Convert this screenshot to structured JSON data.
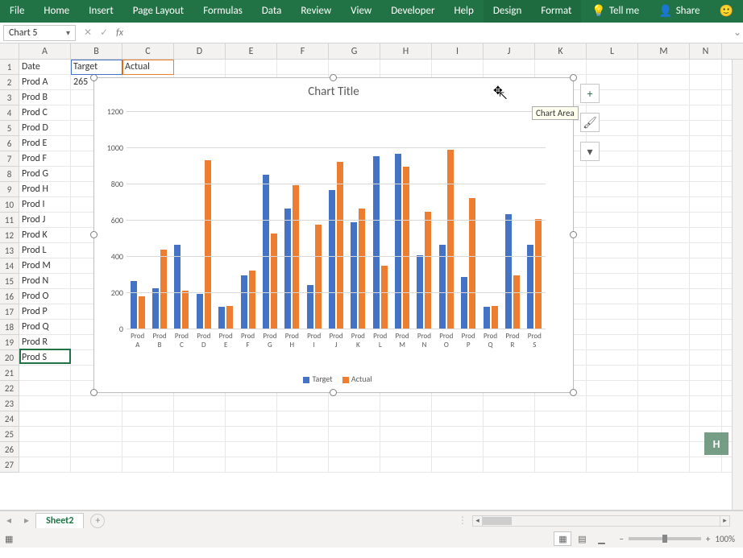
{
  "ribbon": {
    "tabs": [
      "File",
      "Home",
      "Insert",
      "Page Layout",
      "Formulas",
      "Data",
      "Review",
      "View",
      "Developer",
      "Help",
      "Design",
      "Format"
    ],
    "active_tabs": [
      "Design",
      "Format"
    ],
    "tell_me": "Tell me",
    "share": "Share"
  },
  "name_box": "Chart 5",
  "columns": [
    "A",
    "B",
    "C",
    "D",
    "E",
    "F",
    "G",
    "H",
    "I",
    "J",
    "K",
    "L",
    "M",
    "N"
  ],
  "col_widths": {
    "A": 64,
    "B": 64,
    "C": 64,
    "D": 64,
    "E": 64,
    "F": 64,
    "G": 64,
    "H": 64,
    "I": 64,
    "J": 64,
    "K": 64,
    "L": 64,
    "M": 64,
    "N": 40
  },
  "row_count": 27,
  "data_rows": [
    [
      "Date",
      "Target",
      "Actual"
    ],
    [
      "Prod A",
      "265",
      "183"
    ],
    [
      "Prod B"
    ],
    [
      "Prod C"
    ],
    [
      "Prod D"
    ],
    [
      "Prod E"
    ],
    [
      "Prod F"
    ],
    [
      "Prod G"
    ],
    [
      "Prod H"
    ],
    [
      "Prod I"
    ],
    [
      "Prod J"
    ],
    [
      "Prod K"
    ],
    [
      "Prod L"
    ],
    [
      "Prod M"
    ],
    [
      "Prod N"
    ],
    [
      "Prod O"
    ],
    [
      "Prod P"
    ],
    [
      "Prod Q"
    ],
    [
      "Prod R"
    ],
    [
      "Prod S"
    ]
  ],
  "chart": {
    "title": "Chart Title",
    "type": "bar",
    "categories": [
      "Prod A",
      "Prod B",
      "Prod C",
      "Prod D",
      "Prod E",
      "Prod F",
      "Prod G",
      "Prod H",
      "Prod I",
      "Prod J",
      "Prod K",
      "Prod L",
      "Prod M",
      "Prod N",
      "Prod O",
      "Prod P",
      "Prod Q",
      "Prod R",
      "Prod S"
    ],
    "series": [
      {
        "name": "Target",
        "color": "#4472c4",
        "values": [
          265,
          225,
          465,
          195,
          125,
          300,
          855,
          665,
          245,
          770,
          590,
          955,
          970,
          410,
          465,
          290,
          125,
          635,
          465
        ]
      },
      {
        "name": "Actual",
        "color": "#ed7d31",
        "values": [
          183,
          440,
          215,
          935,
          130,
          325,
          530,
          795,
          580,
          925,
          665,
          350,
          900,
          650,
          990,
          725,
          130,
          300,
          610
        ]
      }
    ],
    "ylim": [
      0,
      1200
    ],
    "ytick_step": 200,
    "grid_color": "#d9d9d9",
    "axis_color": "#bfbfbf",
    "background_color": "#ffffff",
    "title_color": "#595959",
    "title_fontsize": 15,
    "label_fontsize": 10,
    "tooltip": "Chart Area"
  },
  "sheet_tab": "Sheet2",
  "zoom_label": "100%"
}
